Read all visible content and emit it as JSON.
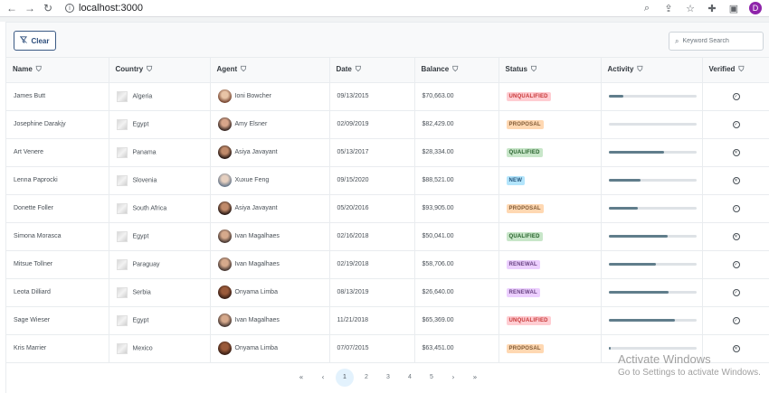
{
  "browser": {
    "url": "localhost:3000",
    "profile_initial": "D"
  },
  "toolbar": {
    "clear_label": "Clear",
    "search_placeholder": "Keyword Search"
  },
  "columns": [
    "Name",
    "Country",
    "Agent",
    "Date",
    "Balance",
    "Status",
    "Activity",
    "Verified"
  ],
  "rows": [
    {
      "name": "James Butt",
      "country": "Algeria",
      "agent": "Ioni Bowcher",
      "agent_img": "a-ioni",
      "date": "09/13/2015",
      "balance": "$70,663.00",
      "status": "UNQUALIFIED",
      "status_class": "unqualified",
      "activity": 17,
      "verified": true
    },
    {
      "name": "Josephine Darakjy",
      "country": "Egypt",
      "agent": "Amy Elsner",
      "agent_img": "a-amy",
      "date": "02/09/2019",
      "balance": "$82,429.00",
      "status": "PROPOSAL",
      "status_class": "proposal",
      "activity": 0,
      "verified": true
    },
    {
      "name": "Art Venere",
      "country": "Panama",
      "agent": "Asiya Javayant",
      "agent_img": "a-asiya",
      "date": "05/13/2017",
      "balance": "$28,334.00",
      "status": "QUALIFIED",
      "status_class": "qualified",
      "activity": 63,
      "verified": false
    },
    {
      "name": "Lenna Paprocki",
      "country": "Slovenia",
      "agent": "Xuxue Feng",
      "agent_img": "a-xuxue",
      "date": "09/15/2020",
      "balance": "$88,521.00",
      "status": "NEW",
      "status_class": "new",
      "activity": 37,
      "verified": false
    },
    {
      "name": "Donette Foller",
      "country": "South Africa",
      "agent": "Asiya Javayant",
      "agent_img": "a-asiya",
      "date": "05/20/2016",
      "balance": "$93,905.00",
      "status": "PROPOSAL",
      "status_class": "proposal",
      "activity": 33,
      "verified": true
    },
    {
      "name": "Simona Morasca",
      "country": "Egypt",
      "agent": "Ivan Magalhaes",
      "agent_img": "a-ivan",
      "date": "02/16/2018",
      "balance": "$50,041.00",
      "status": "QUALIFIED",
      "status_class": "qualified",
      "activity": 68,
      "verified": false
    },
    {
      "name": "Mitsue Tollner",
      "country": "Paraguay",
      "agent": "Ivan Magalhaes",
      "agent_img": "a-ivan",
      "date": "02/19/2018",
      "balance": "$58,706.00",
      "status": "RENEWAL",
      "status_class": "renewal",
      "activity": 54,
      "verified": true
    },
    {
      "name": "Leota Dilliard",
      "country": "Serbia",
      "agent": "Onyama Limba",
      "agent_img": "a-onyama",
      "date": "08/13/2019",
      "balance": "$26,640.00",
      "status": "RENEWAL",
      "status_class": "renewal",
      "activity": 69,
      "verified": true
    },
    {
      "name": "Sage Wieser",
      "country": "Egypt",
      "agent": "Ivan Magalhaes",
      "agent_img": "a-ivan",
      "date": "11/21/2018",
      "balance": "$65,369.00",
      "status": "UNQUALIFIED",
      "status_class": "unqualified",
      "activity": 76,
      "verified": true
    },
    {
      "name": "Kris Marrier",
      "country": "Mexico",
      "agent": "Onyama Limba",
      "agent_img": "a-onyama",
      "date": "07/07/2015",
      "balance": "$63,451.00",
      "status": "PROPOSAL",
      "status_class": "proposal",
      "activity": 3,
      "verified": false
    }
  ],
  "paginator": {
    "first": "«",
    "prev": "‹",
    "pages": [
      "1",
      "2",
      "3",
      "4",
      "5"
    ],
    "active_page": "1",
    "next": "›",
    "last": "»"
  },
  "watermark": {
    "line1": "Activate Windows",
    "line2": "Go to Settings to activate Windows."
  },
  "colors": {
    "accent": "#2d4e7c",
    "activity_fill": "#607d8b",
    "profile": "#8e24aa"
  }
}
